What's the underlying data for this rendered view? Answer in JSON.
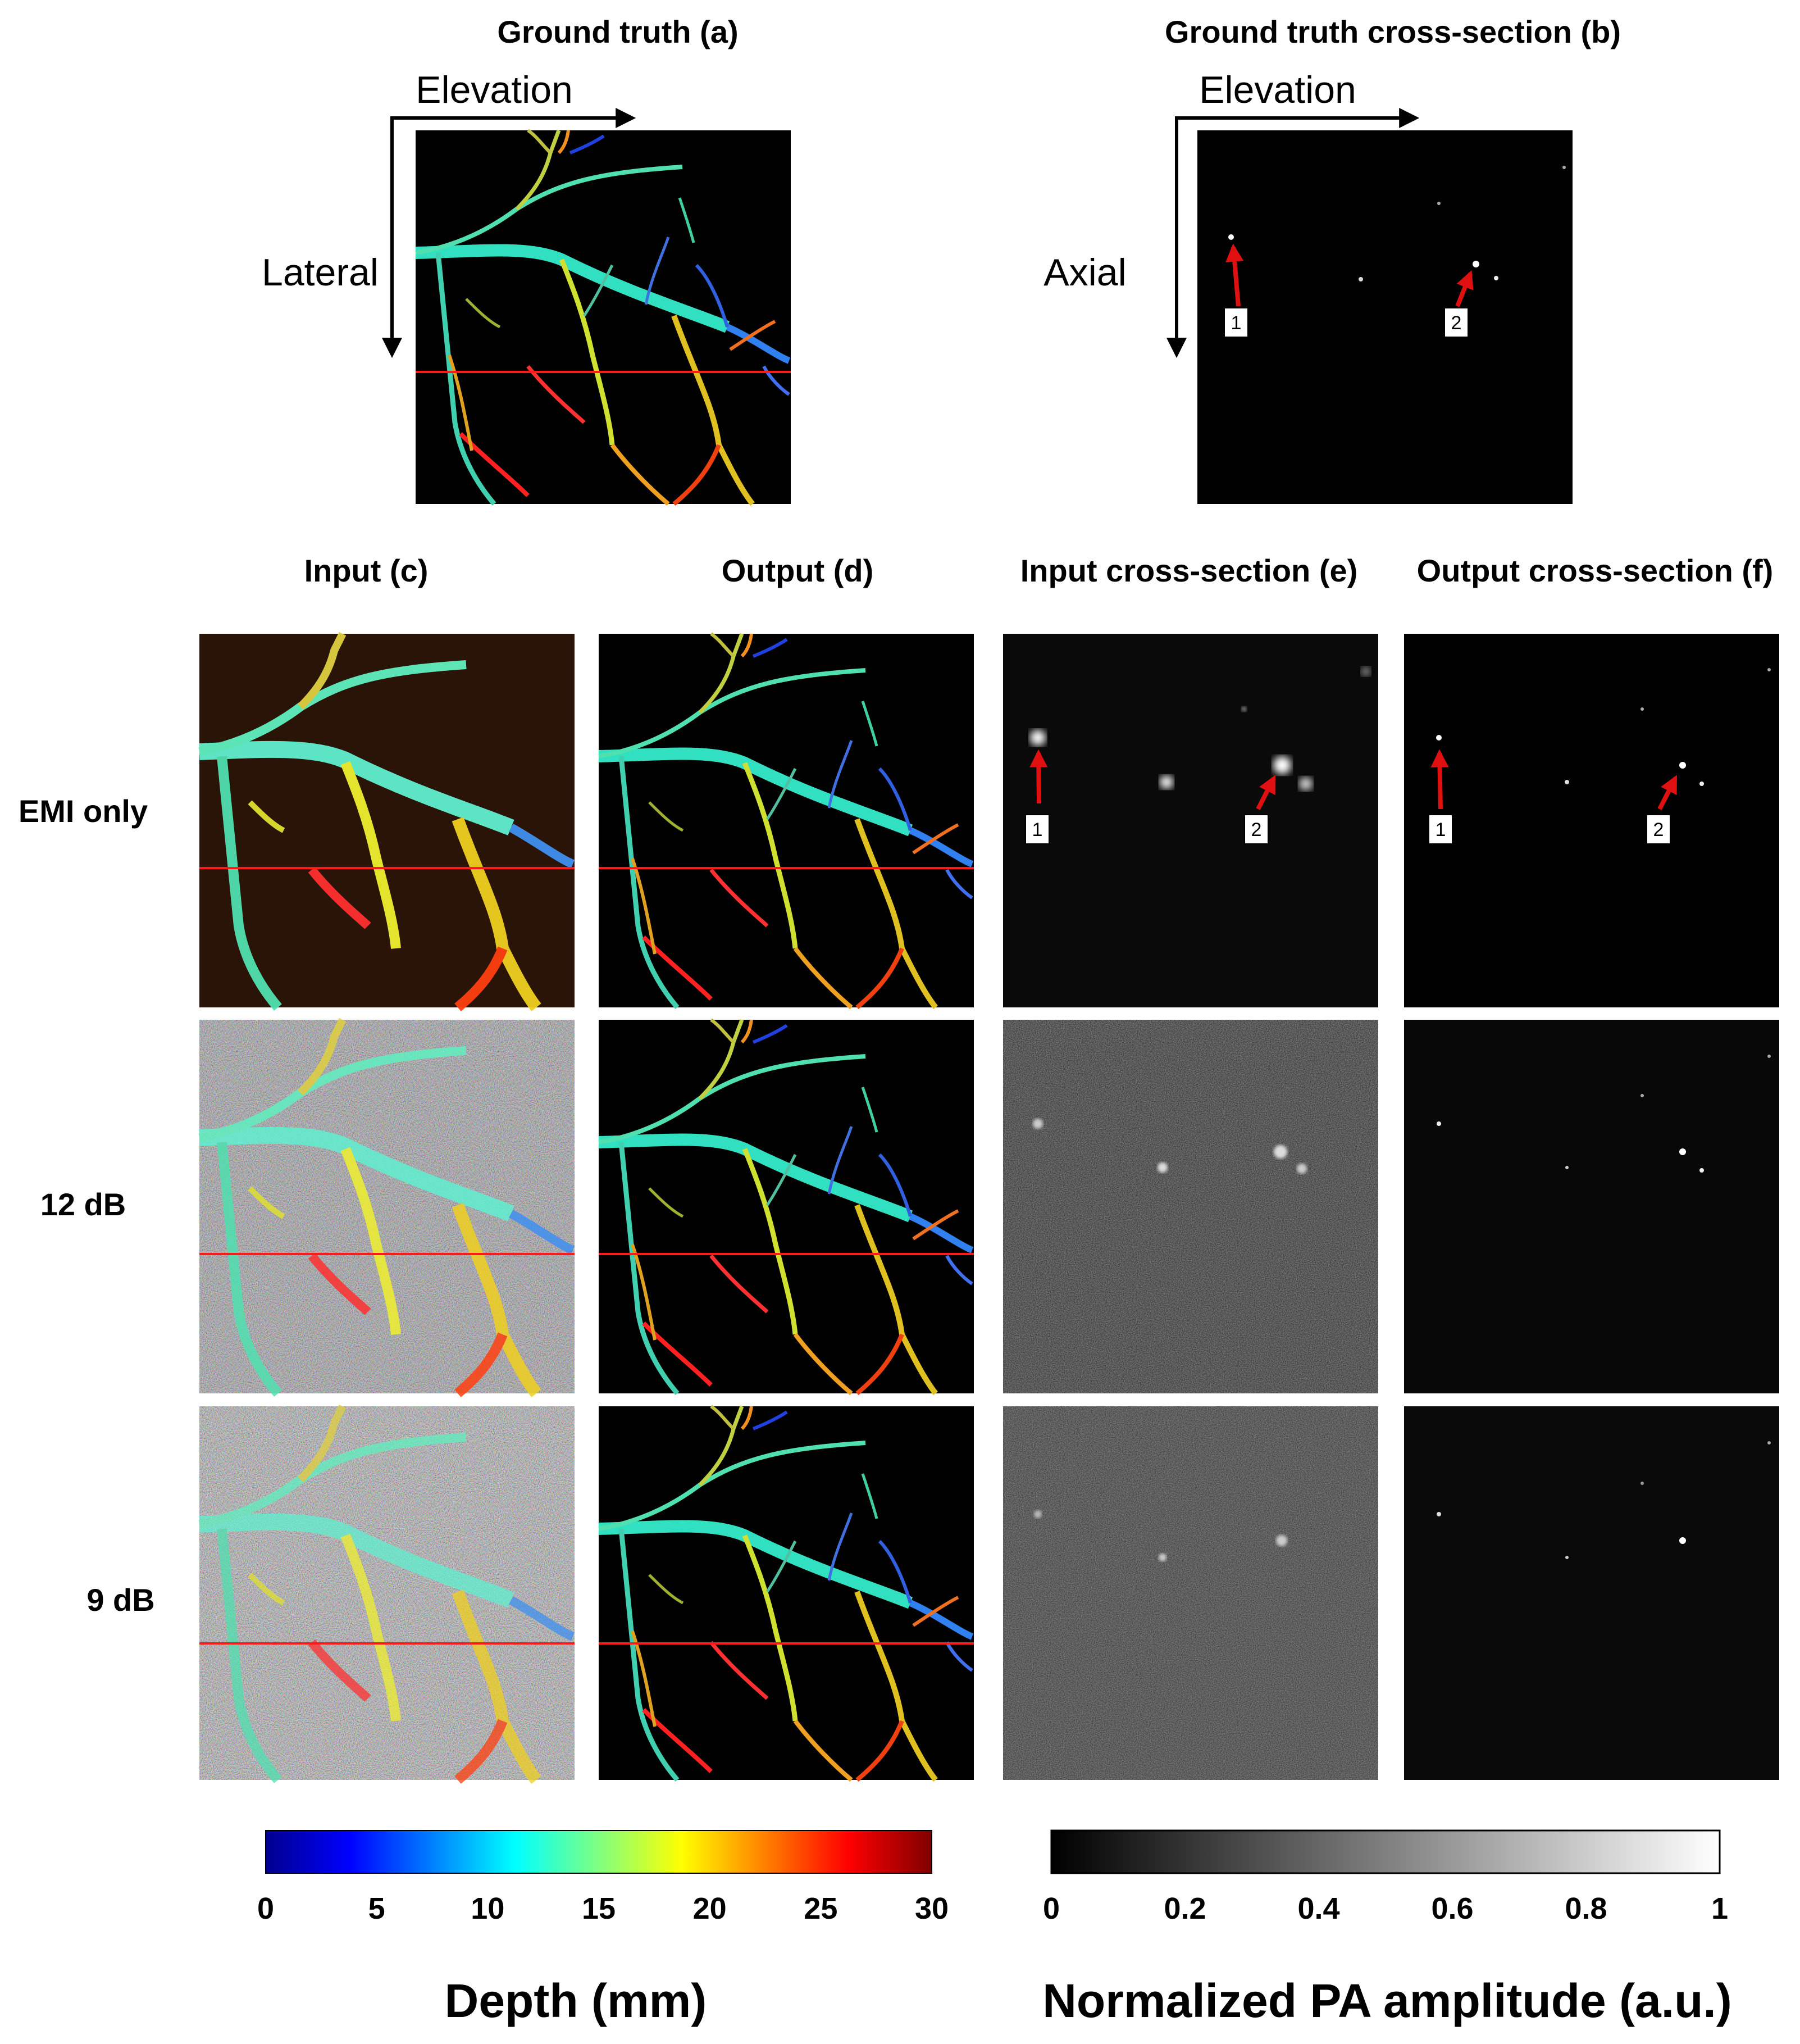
{
  "titles": {
    "a": "Ground truth (a)",
    "b": "Ground truth cross-section (b)",
    "c": "Input (c)",
    "d": "Output (d)",
    "e": "Input cross-section (e)",
    "f": "Output cross-section (f)"
  },
  "axes": {
    "elevation": "Elevation",
    "lateral": "Lateral",
    "axial": "Axial"
  },
  "rows": [
    "EMI only",
    "12 dB",
    "9 dB"
  ],
  "markers": [
    "1",
    "2"
  ],
  "colorbars": {
    "depth": {
      "title": "Depth (mm)",
      "ticks": [
        "0",
        "5",
        "10",
        "15",
        "20",
        "25",
        "30"
      ],
      "colormap": "jet"
    },
    "amplitude": {
      "title": "Normalized PA amplitude (a.u.)",
      "ticks": [
        "0",
        "0.2",
        "0.4",
        "0.6",
        "0.8",
        "1"
      ],
      "colormap": "gray"
    }
  },
  "colors": {
    "section_line": "#ff1a1a",
    "marker_arrow": "#e01010",
    "panel_bg": "#000000"
  }
}
